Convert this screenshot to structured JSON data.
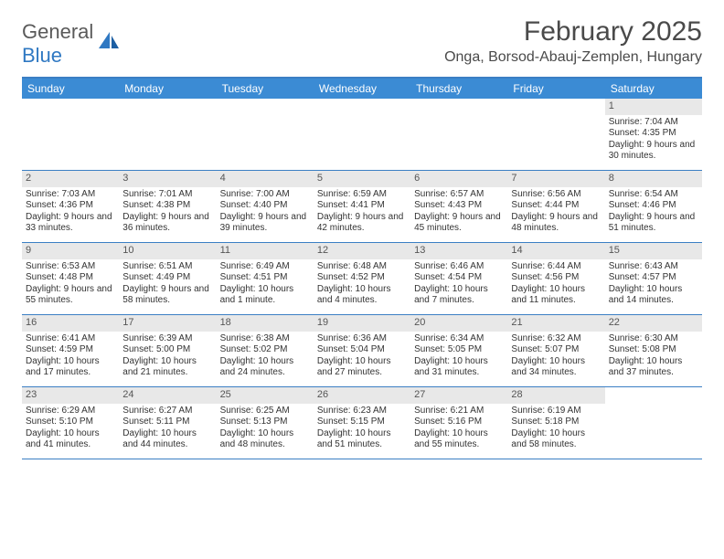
{
  "logo": {
    "part1": "General",
    "part2": "Blue"
  },
  "title": "February 2025",
  "location": "Onga, Borsod-Abauj-Zemplen, Hungary",
  "colors": {
    "header_bar": "#3b8bd4",
    "rule": "#3b7fc4",
    "daynum_bg": "#e8e8e8",
    "logo_gray": "#5a5a5a",
    "logo_blue": "#2f78c2",
    "text": "#333333"
  },
  "weekdays": [
    "Sunday",
    "Monday",
    "Tuesday",
    "Wednesday",
    "Thursday",
    "Friday",
    "Saturday"
  ],
  "weeks": [
    [
      {
        "n": "",
        "sunrise": "",
        "sunset": "",
        "daylight": ""
      },
      {
        "n": "",
        "sunrise": "",
        "sunset": "",
        "daylight": ""
      },
      {
        "n": "",
        "sunrise": "",
        "sunset": "",
        "daylight": ""
      },
      {
        "n": "",
        "sunrise": "",
        "sunset": "",
        "daylight": ""
      },
      {
        "n": "",
        "sunrise": "",
        "sunset": "",
        "daylight": ""
      },
      {
        "n": "",
        "sunrise": "",
        "sunset": "",
        "daylight": ""
      },
      {
        "n": "1",
        "sunrise": "Sunrise: 7:04 AM",
        "sunset": "Sunset: 4:35 PM",
        "daylight": "Daylight: 9 hours and 30 minutes."
      }
    ],
    [
      {
        "n": "2",
        "sunrise": "Sunrise: 7:03 AM",
        "sunset": "Sunset: 4:36 PM",
        "daylight": "Daylight: 9 hours and 33 minutes."
      },
      {
        "n": "3",
        "sunrise": "Sunrise: 7:01 AM",
        "sunset": "Sunset: 4:38 PM",
        "daylight": "Daylight: 9 hours and 36 minutes."
      },
      {
        "n": "4",
        "sunrise": "Sunrise: 7:00 AM",
        "sunset": "Sunset: 4:40 PM",
        "daylight": "Daylight: 9 hours and 39 minutes."
      },
      {
        "n": "5",
        "sunrise": "Sunrise: 6:59 AM",
        "sunset": "Sunset: 4:41 PM",
        "daylight": "Daylight: 9 hours and 42 minutes."
      },
      {
        "n": "6",
        "sunrise": "Sunrise: 6:57 AM",
        "sunset": "Sunset: 4:43 PM",
        "daylight": "Daylight: 9 hours and 45 minutes."
      },
      {
        "n": "7",
        "sunrise": "Sunrise: 6:56 AM",
        "sunset": "Sunset: 4:44 PM",
        "daylight": "Daylight: 9 hours and 48 minutes."
      },
      {
        "n": "8",
        "sunrise": "Sunrise: 6:54 AM",
        "sunset": "Sunset: 4:46 PM",
        "daylight": "Daylight: 9 hours and 51 minutes."
      }
    ],
    [
      {
        "n": "9",
        "sunrise": "Sunrise: 6:53 AM",
        "sunset": "Sunset: 4:48 PM",
        "daylight": "Daylight: 9 hours and 55 minutes."
      },
      {
        "n": "10",
        "sunrise": "Sunrise: 6:51 AM",
        "sunset": "Sunset: 4:49 PM",
        "daylight": "Daylight: 9 hours and 58 minutes."
      },
      {
        "n": "11",
        "sunrise": "Sunrise: 6:49 AM",
        "sunset": "Sunset: 4:51 PM",
        "daylight": "Daylight: 10 hours and 1 minute."
      },
      {
        "n": "12",
        "sunrise": "Sunrise: 6:48 AM",
        "sunset": "Sunset: 4:52 PM",
        "daylight": "Daylight: 10 hours and 4 minutes."
      },
      {
        "n": "13",
        "sunrise": "Sunrise: 6:46 AM",
        "sunset": "Sunset: 4:54 PM",
        "daylight": "Daylight: 10 hours and 7 minutes."
      },
      {
        "n": "14",
        "sunrise": "Sunrise: 6:44 AM",
        "sunset": "Sunset: 4:56 PM",
        "daylight": "Daylight: 10 hours and 11 minutes."
      },
      {
        "n": "15",
        "sunrise": "Sunrise: 6:43 AM",
        "sunset": "Sunset: 4:57 PM",
        "daylight": "Daylight: 10 hours and 14 minutes."
      }
    ],
    [
      {
        "n": "16",
        "sunrise": "Sunrise: 6:41 AM",
        "sunset": "Sunset: 4:59 PM",
        "daylight": "Daylight: 10 hours and 17 minutes."
      },
      {
        "n": "17",
        "sunrise": "Sunrise: 6:39 AM",
        "sunset": "Sunset: 5:00 PM",
        "daylight": "Daylight: 10 hours and 21 minutes."
      },
      {
        "n": "18",
        "sunrise": "Sunrise: 6:38 AM",
        "sunset": "Sunset: 5:02 PM",
        "daylight": "Daylight: 10 hours and 24 minutes."
      },
      {
        "n": "19",
        "sunrise": "Sunrise: 6:36 AM",
        "sunset": "Sunset: 5:04 PM",
        "daylight": "Daylight: 10 hours and 27 minutes."
      },
      {
        "n": "20",
        "sunrise": "Sunrise: 6:34 AM",
        "sunset": "Sunset: 5:05 PM",
        "daylight": "Daylight: 10 hours and 31 minutes."
      },
      {
        "n": "21",
        "sunrise": "Sunrise: 6:32 AM",
        "sunset": "Sunset: 5:07 PM",
        "daylight": "Daylight: 10 hours and 34 minutes."
      },
      {
        "n": "22",
        "sunrise": "Sunrise: 6:30 AM",
        "sunset": "Sunset: 5:08 PM",
        "daylight": "Daylight: 10 hours and 37 minutes."
      }
    ],
    [
      {
        "n": "23",
        "sunrise": "Sunrise: 6:29 AM",
        "sunset": "Sunset: 5:10 PM",
        "daylight": "Daylight: 10 hours and 41 minutes."
      },
      {
        "n": "24",
        "sunrise": "Sunrise: 6:27 AM",
        "sunset": "Sunset: 5:11 PM",
        "daylight": "Daylight: 10 hours and 44 minutes."
      },
      {
        "n": "25",
        "sunrise": "Sunrise: 6:25 AM",
        "sunset": "Sunset: 5:13 PM",
        "daylight": "Daylight: 10 hours and 48 minutes."
      },
      {
        "n": "26",
        "sunrise": "Sunrise: 6:23 AM",
        "sunset": "Sunset: 5:15 PM",
        "daylight": "Daylight: 10 hours and 51 minutes."
      },
      {
        "n": "27",
        "sunrise": "Sunrise: 6:21 AM",
        "sunset": "Sunset: 5:16 PM",
        "daylight": "Daylight: 10 hours and 55 minutes."
      },
      {
        "n": "28",
        "sunrise": "Sunrise: 6:19 AM",
        "sunset": "Sunset: 5:18 PM",
        "daylight": "Daylight: 10 hours and 58 minutes."
      },
      {
        "n": "",
        "sunrise": "",
        "sunset": "",
        "daylight": ""
      }
    ]
  ]
}
